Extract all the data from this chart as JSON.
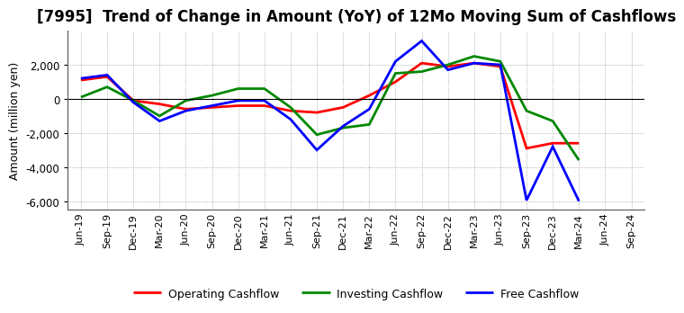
{
  "title": "[7995]  Trend of Change in Amount (YoY) of 12Mo Moving Sum of Cashflows",
  "ylabel": "Amount (million yen)",
  "x_labels": [
    "Jun-19",
    "Sep-19",
    "Dec-19",
    "Mar-20",
    "Jun-20",
    "Sep-20",
    "Dec-20",
    "Mar-21",
    "Jun-21",
    "Sep-21",
    "Dec-21",
    "Mar-22",
    "Jun-22",
    "Sep-22",
    "Dec-22",
    "Mar-23",
    "Jun-23",
    "Sep-23",
    "Dec-23",
    "Mar-24",
    "Jun-24",
    "Sep-24"
  ],
  "operating": [
    1100,
    1300,
    -100,
    -300,
    -600,
    -500,
    -400,
    -400,
    -700,
    -800,
    -500,
    200,
    1000,
    2100,
    1900,
    2100,
    1900,
    -2900,
    -2600,
    -2600,
    null,
    null
  ],
  "investing": [
    100,
    700,
    -100,
    -1000,
    -100,
    200,
    600,
    600,
    -500,
    -2100,
    -1700,
    -1500,
    1500,
    1600,
    2000,
    2500,
    2200,
    -700,
    -1300,
    -3600,
    null,
    null
  ],
  "free": [
    1200,
    1400,
    -200,
    -1300,
    -700,
    -400,
    -100,
    -100,
    -1200,
    -3000,
    -1600,
    -600,
    2200,
    3400,
    1700,
    2100,
    2000,
    -5950,
    -2800,
    -6000,
    null,
    null
  ],
  "operating_color": "#ff0000",
  "investing_color": "#008800",
  "free_color": "#0000ff",
  "ylim": [
    -6500,
    4000
  ],
  "yticks": [
    -6000,
    -4000,
    -2000,
    0,
    2000
  ],
  "bg_color": "#ffffff",
  "grid_color": "#999999",
  "title_fontsize": 12,
  "axis_fontsize": 9,
  "legend_fontsize": 9,
  "linewidth": 2.0
}
